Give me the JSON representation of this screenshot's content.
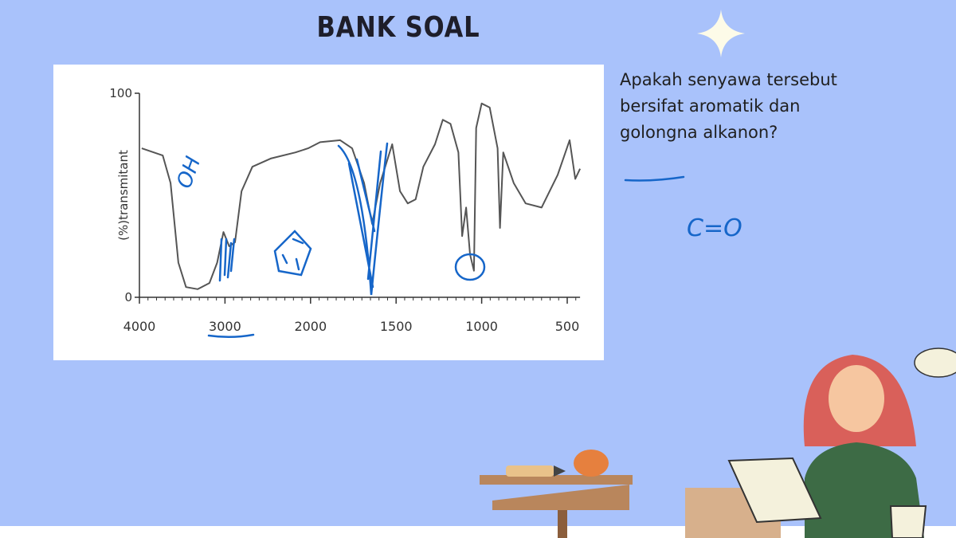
{
  "title": "BANK SOAL",
  "question": "Apakah senyawa tersebut bersifat aromatik dan golongna alkanon?",
  "annotations": [
    "OH",
    "C=O"
  ],
  "chart_data": {
    "type": "line",
    "y_label": "(%)transmitant",
    "color": "#555555",
    "x": [
      3973,
      3727,
      3636,
      3545,
      3455,
      3318,
      3182,
      3091,
      3018,
      2951,
      2883,
      2806,
      2680,
      2466,
      2175,
      2029,
      1944,
      1827,
      1757,
      1687,
      1640,
      1593,
      1523,
      1477,
      1432,
      1386,
      1341,
      1273,
      1227,
      1182,
      1136,
      1114,
      1091,
      1068,
      1045,
      1032,
      1000,
      953,
      907,
      893,
      874,
      813,
      743,
      650,
      556,
      486,
      453,
      425
    ],
    "values": [
      73,
      69.5,
      56,
      17,
      5,
      4,
      7,
      17,
      32,
      25,
      27,
      52,
      64,
      68,
      71,
      73,
      76,
      77,
      73,
      56,
      36,
      56,
      75,
      52,
      46,
      48,
      64,
      75,
      87,
      85,
      71,
      30,
      44,
      21,
      13,
      83,
      95,
      93,
      73,
      34,
      71,
      56,
      46,
      44,
      60,
      77,
      58,
      63
    ],
    "xlim": [
      4000,
      425
    ],
    "ylim": [
      0,
      100
    ],
    "xticks": [
      4000,
      3000,
      2000,
      1500,
      1000,
      500
    ],
    "yticks": [
      0,
      100
    ]
  }
}
